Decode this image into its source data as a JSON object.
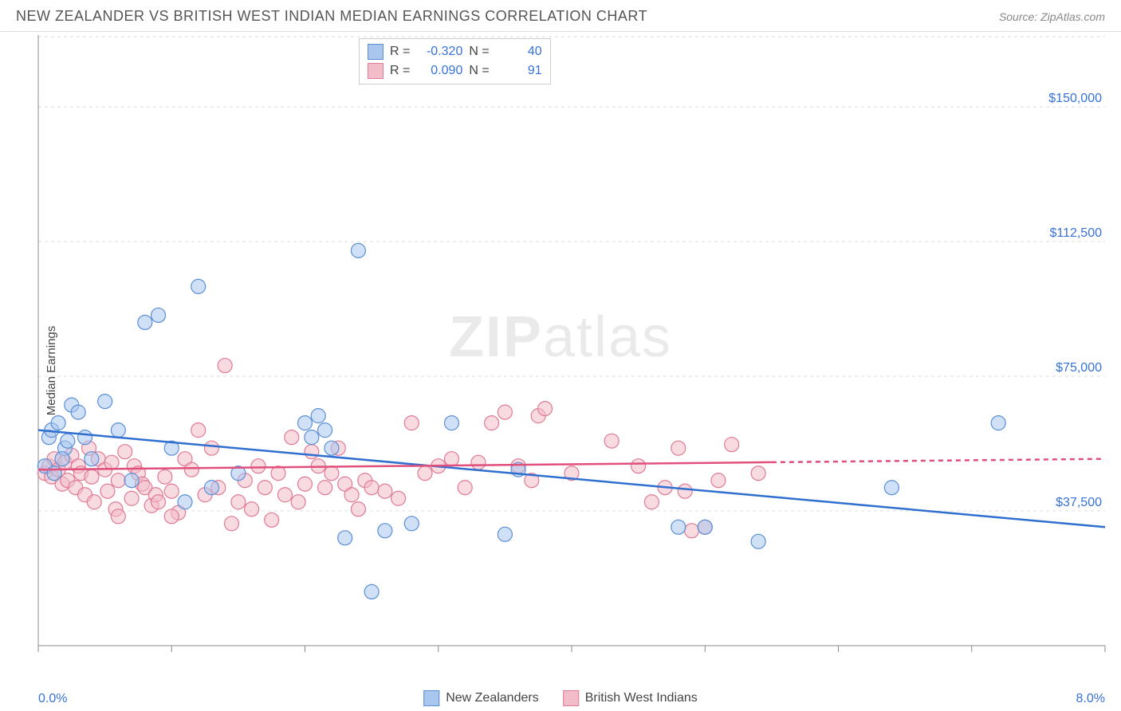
{
  "header": {
    "title": "NEW ZEALANDER VS BRITISH WEST INDIAN MEDIAN EARNINGS CORRELATION CHART",
    "source": "Source: ZipAtlas.com"
  },
  "watermark": {
    "zip": "ZIP",
    "rest": "atlas"
  },
  "chart": {
    "type": "scatter",
    "ylabel": "Median Earnings",
    "xlim": [
      0.0,
      8.0
    ],
    "ylim": [
      0,
      170000
    ],
    "x_tick_start": "0.0%",
    "x_tick_end": "8.0%",
    "x_minor_ticks": [
      0,
      1,
      2,
      3,
      4,
      5,
      6,
      7,
      8
    ],
    "y_ticks": [
      {
        "v": 37500,
        "label": "$37,500"
      },
      {
        "v": 75000,
        "label": "$75,000"
      },
      {
        "v": 112500,
        "label": "$112,500"
      },
      {
        "v": 150000,
        "label": "$150,000"
      }
    ],
    "background_color": "#ffffff",
    "grid_color": "#dddddd",
    "axis_color": "#888888",
    "marker_radius": 9,
    "marker_opacity": 0.55,
    "series": [
      {
        "name": "New Zealanders",
        "color_fill": "#a9c6ef",
        "color_stroke": "#5a8fd6",
        "R": "-0.320",
        "N": "40",
        "trend": {
          "x1": 0.0,
          "y1": 60000,
          "x2": 8.0,
          "y2": 33000,
          "color": "#2f6fd0",
          "width": 2.5,
          "dash_after_x": 8.0
        },
        "points": [
          [
            0.05,
            50000
          ],
          [
            0.08,
            58000
          ],
          [
            0.1,
            60000
          ],
          [
            0.12,
            48000
          ],
          [
            0.15,
            62000
          ],
          [
            0.2,
            55000
          ],
          [
            0.25,
            67000
          ],
          [
            0.3,
            65000
          ],
          [
            0.35,
            58000
          ],
          [
            0.4,
            52000
          ],
          [
            0.5,
            68000
          ],
          [
            0.6,
            60000
          ],
          [
            0.7,
            46000
          ],
          [
            0.8,
            90000
          ],
          [
            0.9,
            92000
          ],
          [
            1.0,
            55000
          ],
          [
            1.1,
            40000
          ],
          [
            1.2,
            100000
          ],
          [
            1.3,
            44000
          ],
          [
            1.5,
            48000
          ],
          [
            2.0,
            62000
          ],
          [
            2.05,
            58000
          ],
          [
            2.1,
            64000
          ],
          [
            2.15,
            60000
          ],
          [
            2.2,
            55000
          ],
          [
            2.3,
            30000
          ],
          [
            2.4,
            110000
          ],
          [
            2.5,
            15000
          ],
          [
            2.6,
            32000
          ],
          [
            2.8,
            34000
          ],
          [
            3.1,
            62000
          ],
          [
            3.5,
            31000
          ],
          [
            3.6,
            49000
          ],
          [
            4.8,
            33000
          ],
          [
            5.0,
            33000
          ],
          [
            5.4,
            29000
          ],
          [
            6.4,
            44000
          ],
          [
            7.2,
            62000
          ],
          [
            0.18,
            52000
          ],
          [
            0.22,
            57000
          ]
        ]
      },
      {
        "name": "British West Indians",
        "color_fill": "#f3bcc9",
        "color_stroke": "#e17a96",
        "R": "0.090",
        "N": "91",
        "trend": {
          "x1": 0.0,
          "y1": 49000,
          "x2": 8.0,
          "y2": 52000,
          "color": "#e14f7c",
          "width": 2.5,
          "dash_after_x": 5.5
        },
        "points": [
          [
            0.05,
            48000
          ],
          [
            0.08,
            50000
          ],
          [
            0.1,
            47000
          ],
          [
            0.12,
            52000
          ],
          [
            0.15,
            49000
          ],
          [
            0.18,
            45000
          ],
          [
            0.2,
            51000
          ],
          [
            0.22,
            46000
          ],
          [
            0.25,
            53000
          ],
          [
            0.28,
            44000
          ],
          [
            0.3,
            50000
          ],
          [
            0.32,
            48000
          ],
          [
            0.35,
            42000
          ],
          [
            0.38,
            55000
          ],
          [
            0.4,
            47000
          ],
          [
            0.42,
            40000
          ],
          [
            0.45,
            52000
          ],
          [
            0.5,
            49000
          ],
          [
            0.52,
            43000
          ],
          [
            0.55,
            51000
          ],
          [
            0.58,
            38000
          ],
          [
            0.6,
            46000
          ],
          [
            0.65,
            54000
          ],
          [
            0.7,
            41000
          ],
          [
            0.72,
            50000
          ],
          [
            0.75,
            48000
          ],
          [
            0.78,
            45000
          ],
          [
            0.8,
            44000
          ],
          [
            0.85,
            39000
          ],
          [
            0.88,
            42000
          ],
          [
            0.9,
            40000
          ],
          [
            0.95,
            47000
          ],
          [
            1.0,
            43000
          ],
          [
            1.05,
            37000
          ],
          [
            1.1,
            52000
          ],
          [
            1.15,
            49000
          ],
          [
            1.2,
            60000
          ],
          [
            1.25,
            42000
          ],
          [
            1.3,
            55000
          ],
          [
            1.35,
            44000
          ],
          [
            1.4,
            78000
          ],
          [
            1.5,
            40000
          ],
          [
            1.55,
            46000
          ],
          [
            1.6,
            38000
          ],
          [
            1.65,
            50000
          ],
          [
            1.7,
            44000
          ],
          [
            1.75,
            35000
          ],
          [
            1.8,
            48000
          ],
          [
            1.85,
            42000
          ],
          [
            1.9,
            58000
          ],
          [
            1.95,
            40000
          ],
          [
            2.0,
            45000
          ],
          [
            2.05,
            54000
          ],
          [
            2.1,
            50000
          ],
          [
            2.15,
            44000
          ],
          [
            2.2,
            48000
          ],
          [
            2.25,
            55000
          ],
          [
            2.3,
            45000
          ],
          [
            2.35,
            42000
          ],
          [
            2.4,
            38000
          ],
          [
            2.45,
            46000
          ],
          [
            2.5,
            44000
          ],
          [
            2.6,
            43000
          ],
          [
            2.7,
            41000
          ],
          [
            2.8,
            62000
          ],
          [
            2.9,
            48000
          ],
          [
            3.0,
            50000
          ],
          [
            3.1,
            52000
          ],
          [
            3.2,
            44000
          ],
          [
            3.3,
            51000
          ],
          [
            3.4,
            62000
          ],
          [
            3.5,
            65000
          ],
          [
            3.6,
            50000
          ],
          [
            3.7,
            46000
          ],
          [
            3.75,
            64000
          ],
          [
            3.8,
            66000
          ],
          [
            4.0,
            48000
          ],
          [
            4.3,
            57000
          ],
          [
            4.5,
            50000
          ],
          [
            4.6,
            40000
          ],
          [
            4.7,
            44000
          ],
          [
            4.8,
            55000
          ],
          [
            4.85,
            43000
          ],
          [
            4.9,
            32000
          ],
          [
            5.0,
            33000
          ],
          [
            5.1,
            46000
          ],
          [
            5.2,
            56000
          ],
          [
            5.4,
            48000
          ],
          [
            0.6,
            36000
          ],
          [
            1.0,
            36000
          ],
          [
            1.45,
            34000
          ]
        ]
      }
    ],
    "legend": {
      "series1_label": "New Zealanders",
      "series2_label": "British West Indians"
    },
    "corr_legend": {
      "r_label": "R =",
      "n_label": "N ="
    }
  }
}
